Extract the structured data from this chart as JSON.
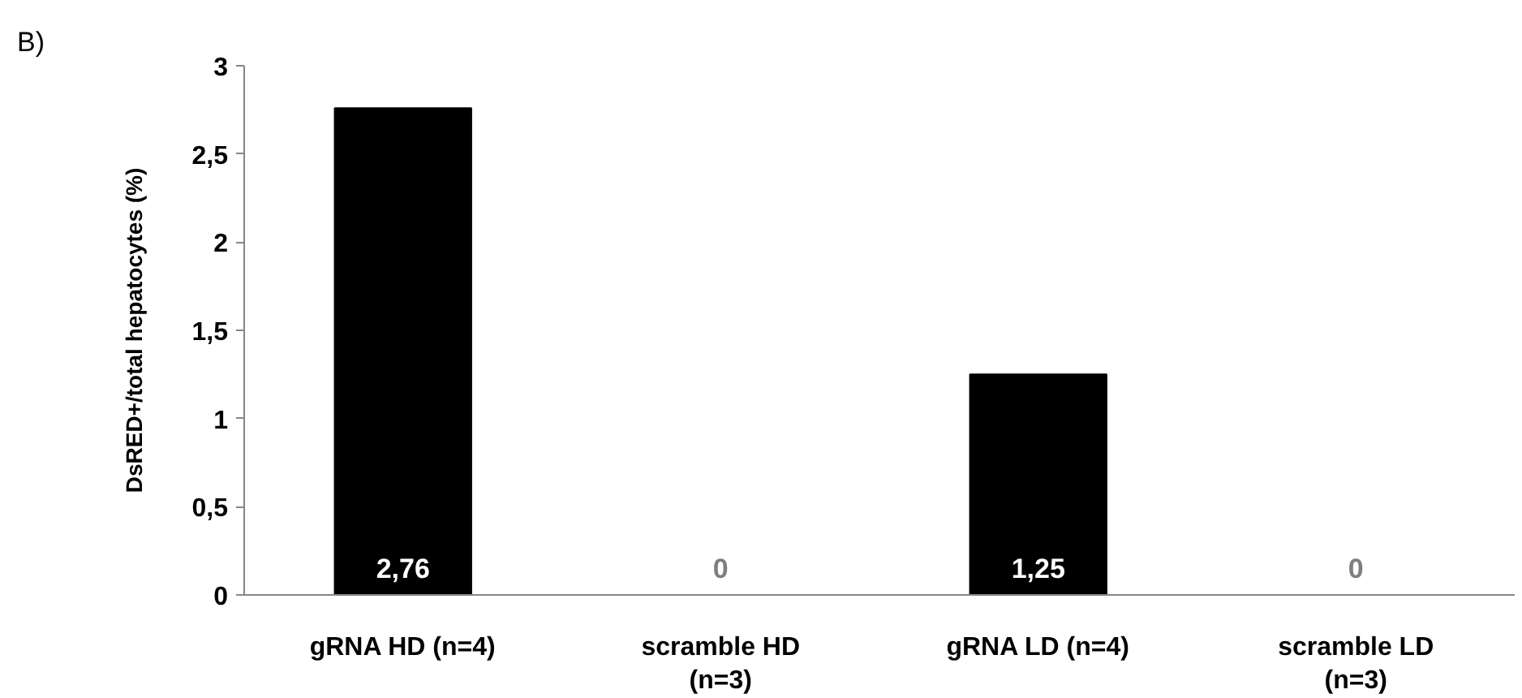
{
  "chart_data": {
    "type": "bar",
    "ylabel": "DsRED+/total hepatocytes (%)",
    "categories": [
      "gRNA HD (n=4)",
      "scramble HD\n(n=3)",
      "gRNA LD (n=4)",
      "scramble LD\n(n=3)"
    ],
    "values": [
      2.76,
      0,
      1.25,
      0
    ],
    "value_labels": [
      "2,76",
      "0",
      "1,25",
      "0"
    ],
    "color": "#000000",
    "ylim": [
      0,
      3
    ],
    "yticks": [
      0,
      {
        "value": 0.5,
        "label": "0,5"
      },
      1,
      {
        "value": 1.5,
        "label": "1,5"
      },
      2,
      {
        "value": 2.5,
        "label": "2,5"
      },
      3
    ],
    "grid": false,
    "annotations": [
      "B)"
    ]
  }
}
